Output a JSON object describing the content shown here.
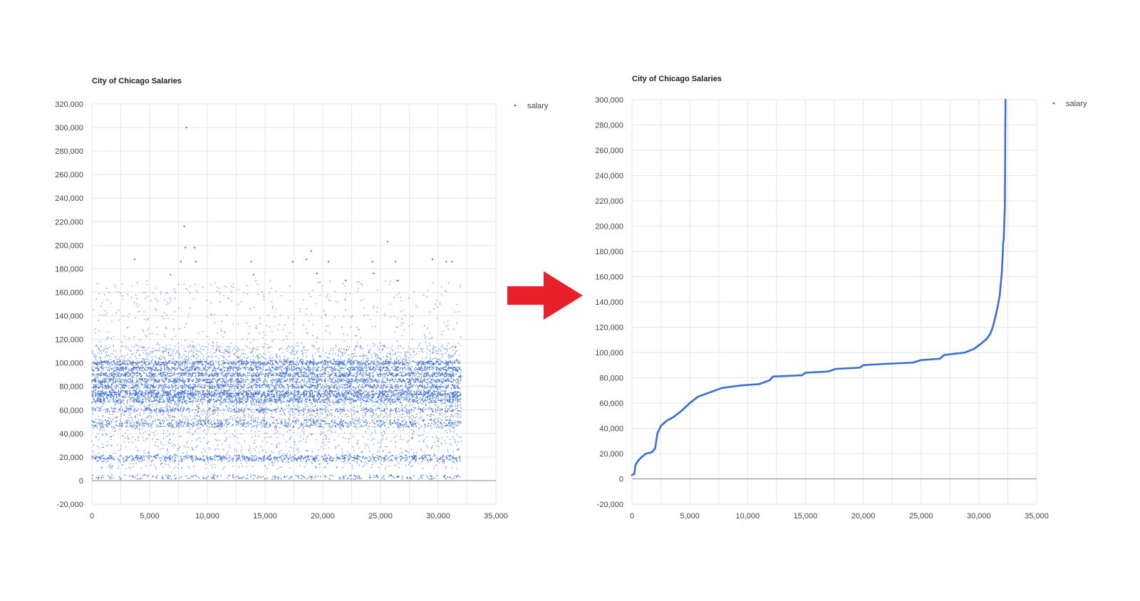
{
  "chart_data": [
    {
      "type": "scatter",
      "title": "City of Chicago Salaries",
      "legend": {
        "position": "top-right",
        "entries": [
          "salary"
        ]
      },
      "grid": true,
      "xlim": [
        0,
        35000
      ],
      "ylim": [
        -20000,
        320000
      ],
      "x_ticks": [
        "0",
        "5,000",
        "10,000",
        "15,000",
        "20,000",
        "25,000",
        "30,000",
        "35,000"
      ],
      "y_ticks": [
        "320,000",
        "300,000",
        "280,000",
        "260,000",
        "240,000",
        "220,000",
        "200,000",
        "180,000",
        "160,000",
        "140,000",
        "120,000",
        "100,000",
        "80,000",
        "60,000",
        "40,000",
        "20,000",
        "0",
        "-20,000"
      ],
      "series": [
        {
          "name": "salary",
          "color": "#3b6fd6",
          "x_range": [
            0,
            32000
          ],
          "points": [
            [
              8200,
              300000
            ],
            [
              8000,
              216000
            ],
            [
              8100,
              198000
            ],
            [
              8900,
              198000
            ],
            [
              9000,
              186000
            ],
            [
              3700,
              188000
            ],
            [
              7700,
              186000
            ],
            [
              13800,
              186000
            ],
            [
              17400,
              186000
            ],
            [
              18600,
              188000
            ],
            [
              19000,
              195000
            ],
            [
              19500,
              176000
            ],
            [
              20500,
              186000
            ],
            [
              24300,
              186000
            ],
            [
              25600,
              203000
            ],
            [
              26300,
              186000
            ],
            [
              29500,
              188000
            ],
            [
              30700,
              186000
            ],
            [
              31200,
              186000
            ],
            [
              24400,
              176000
            ],
            [
              14000,
              175000
            ],
            [
              26500,
              170000
            ],
            [
              22000,
              170000
            ],
            [
              6800,
              175000
            ]
          ],
          "bands": [
            {
              "y": 100000,
              "density": 1.0
            },
            {
              "y": 95000,
              "density": 0.9
            },
            {
              "y": 90000,
              "density": 1.0
            },
            {
              "y": 85000,
              "density": 0.9
            },
            {
              "y": 80000,
              "density": 0.8
            },
            {
              "y": 75000,
              "density": 1.0
            },
            {
              "y": 72000,
              "density": 0.95
            },
            {
              "y": 68000,
              "density": 0.8
            },
            {
              "y": 60000,
              "density": 0.45
            },
            {
              "y": 50000,
              "density": 0.35
            },
            {
              "y": 47000,
              "density": 0.3
            },
            {
              "y": 20000,
              "density": 0.55
            },
            {
              "y": 18000,
              "density": 0.45
            },
            {
              "y": 3000,
              "density": 0.4
            }
          ]
        }
      ]
    },
    {
      "type": "scatter",
      "title": "City of Chicago Salaries",
      "legend": {
        "position": "top-right",
        "entries": [
          "salary"
        ]
      },
      "grid": true,
      "xlim": [
        0,
        35000
      ],
      "ylim": [
        -20000,
        300000
      ],
      "x_ticks": [
        "0",
        "5,000",
        "10,000",
        "15,000",
        "20,000",
        "25,000",
        "30,000",
        "35,000"
      ],
      "y_ticks": [
        "300,000",
        "280,000",
        "260,000",
        "240,000",
        "220,000",
        "200,000",
        "180,000",
        "160,000",
        "140,000",
        "120,000",
        "100,000",
        "80,000",
        "60,000",
        "40,000",
        "20,000",
        "0",
        "-20,000"
      ],
      "series": [
        {
          "name": "salary",
          "color": "#3b6fd6",
          "points": [
            [
              0,
              3000
            ],
            [
              200,
              4000
            ],
            [
              300,
              11000
            ],
            [
              500,
              14000
            ],
            [
              800,
              17000
            ],
            [
              1200,
              20000
            ],
            [
              1700,
              21000
            ],
            [
              2000,
              24000
            ],
            [
              2200,
              36000
            ],
            [
              2500,
              42000
            ],
            [
              3000,
              46000
            ],
            [
              3600,
              49000
            ],
            [
              4300,
              54000
            ],
            [
              5000,
              60000
            ],
            [
              5700,
              65000
            ],
            [
              6600,
              68000
            ],
            [
              7800,
              72000
            ],
            [
              9500,
              74000
            ],
            [
              11000,
              75000
            ],
            [
              11900,
              78000
            ],
            [
              12200,
              81000
            ],
            [
              14700,
              82000
            ],
            [
              15000,
              84000
            ],
            [
              17000,
              85000
            ],
            [
              17600,
              87000
            ],
            [
              19700,
              88000
            ],
            [
              20000,
              90000
            ],
            [
              21900,
              91000
            ],
            [
              24300,
              92000
            ],
            [
              25000,
              94000
            ],
            [
              26600,
              95000
            ],
            [
              27000,
              98000
            ],
            [
              28800,
              100000
            ],
            [
              29600,
              103000
            ],
            [
              30200,
              107000
            ],
            [
              30700,
              111000
            ],
            [
              31000,
              115000
            ],
            [
              31200,
              120000
            ],
            [
              31400,
              127000
            ],
            [
              31600,
              135000
            ],
            [
              31800,
              145000
            ],
            [
              31900,
              155000
            ],
            [
              32000,
              165000
            ],
            [
              32050,
              175000
            ],
            [
              32100,
              186000
            ],
            [
              32150,
              190000
            ],
            [
              32200,
              203000
            ],
            [
              32250,
              216000
            ],
            [
              32300,
              300000
            ]
          ]
        }
      ]
    }
  ],
  "arrow": {
    "color": "#e8202a"
  }
}
